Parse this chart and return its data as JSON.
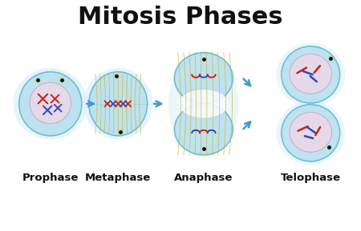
{
  "title": "Mitosis Phases",
  "title_fontsize": 22,
  "title_fontweight": "bold",
  "labels": [
    "Prophase",
    "Metaphase",
    "Anaphase",
    "Telophase"
  ],
  "label_fontsize": 9.5,
  "label_fontweight": "bold",
  "bg_color": "#ffffff",
  "cell_fill": "#b8e0ee",
  "cell_edge": "#60b8d0",
  "glow_fill": "#d8eef8",
  "nucleus_fill": "#ecd8e8",
  "nucleus_edge": "#c8a8c8",
  "spindle_color": "#c8b840",
  "chr_red": "#cc2211",
  "chr_blue": "#3344bb",
  "chr_pink": "#dd6688",
  "arrow_color": "#4499cc",
  "dot_color": "#111111",
  "white_spindle": "#f8fbff"
}
